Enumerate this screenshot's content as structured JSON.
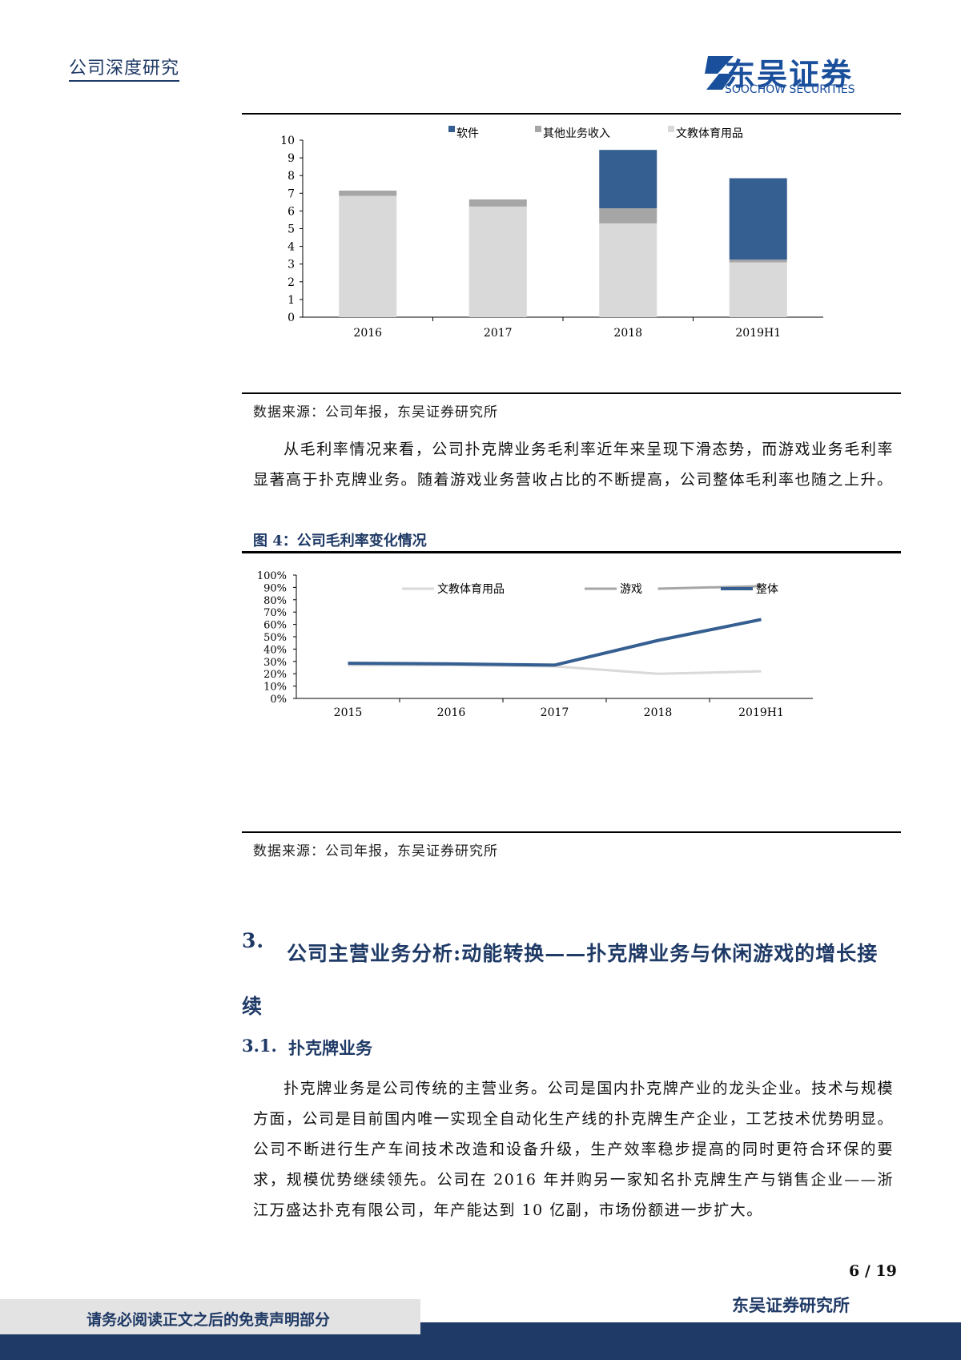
{
  "header": {
    "title": "公司深度研究",
    "logo_cn": "东吴证券",
    "logo_en": "SOOCHOW SECURITIES",
    "logo_mark": "SCS"
  },
  "figure3": {
    "source": "数据来源：公司年报，东吴证券研究所"
  },
  "paragraph1": "从毛利率情况来看，公司扑克牌业务毛利率近年来呈现下滑态势，而游戏业务毛利率显著高于扑克牌业务。随着游戏业务营收占比的不断提高，公司整体毛利率也随之上升。",
  "figure4": {
    "title": "图 4：公司毛利率变化情况",
    "source": "数据来源：公司年报，东吴证券研究所"
  },
  "section3": {
    "number": "3.",
    "title": "公司主营业务分析:动能转换——扑克牌业务与休闲游戏的增长接续"
  },
  "section31": {
    "number": "3.1.",
    "title": "扑克牌业务"
  },
  "paragraph2": "扑克牌业务是公司传统的主营业务。公司是国内扑克牌产业的龙头企业。技术与规模方面，公司是目前国内唯一实现全自动化生产线的扑克牌生产企业，工艺技术优势明显。公司不断进行生产车间技术改造和设备升级，生产效率稳步提高的同时更符合环保的要求，规模优势继续领先。公司在 2016 年并购另一家知名扑克牌生产与销售企业——浙江万盛达扑克有限公司，年产能达到 10 亿副，市场份额进一步扩大。",
  "footer": {
    "page": "6 / 19",
    "disclaimer": "请务必阅读正文之后的免责声明部分",
    "org": "东吴证券研究所"
  },
  "chart_data": [
    {
      "type": "bar",
      "stacked": true,
      "categories": [
        "2016",
        "2017",
        "2018",
        "2019H1"
      ],
      "ylim": [
        0,
        10
      ],
      "yticks": [
        0,
        1,
        2,
        3,
        4,
        5,
        6,
        7,
        8,
        9,
        10
      ],
      "legend": "top",
      "series": [
        {
          "name": "文教体育用品",
          "color": "#d9d9d9",
          "values": [
            6.85,
            6.25,
            5.3,
            3.1
          ]
        },
        {
          "name": "其他业务收入",
          "color": "#a6a6a6",
          "values": [
            0.3,
            0.4,
            0.85,
            0.15
          ]
        },
        {
          "name": "软件",
          "color": "#365f91",
          "values": [
            0,
            0,
            3.3,
            4.6
          ]
        }
      ],
      "legend_order": [
        "软件",
        "其他业务收入",
        "文教体育用品"
      ]
    },
    {
      "type": "line",
      "categories": [
        "2015",
        "2016",
        "2017",
        "2018",
        "2019H1"
      ],
      "ylim": [
        0,
        100
      ],
      "yticks": [
        "0%",
        "10%",
        "20%",
        "30%",
        "40%",
        "50%",
        "60%",
        "70%",
        "80%",
        "90%",
        "100%"
      ],
      "legend": "top",
      "series": [
        {
          "name": "文教体育用品",
          "color": "#d9d9d9",
          "values": [
            27,
            27,
            26,
            20,
            22
          ]
        },
        {
          "name": "游戏",
          "color": "#a6a6a6",
          "values": [
            null,
            null,
            null,
            89,
            91
          ]
        },
        {
          "name": "整体",
          "color": "#365f91",
          "values": [
            28.5,
            28,
            27,
            47,
            64
          ]
        }
      ]
    }
  ]
}
